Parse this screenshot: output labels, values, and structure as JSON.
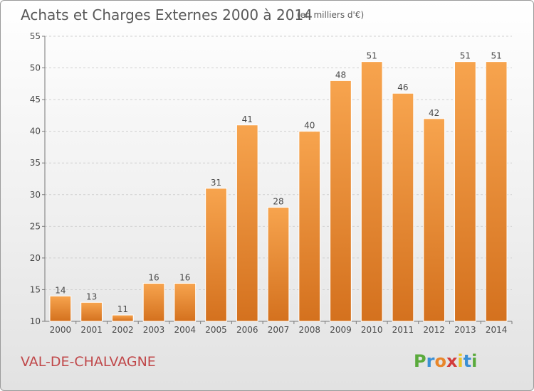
{
  "chart_data": {
    "type": "bar",
    "title": "Achats et Charges Externes 2000 à 2014",
    "subtitle": "(en milliers d'€)",
    "categories": [
      "2000",
      "2001",
      "2002",
      "2003",
      "2004",
      "2005",
      "2006",
      "2007",
      "2008",
      "2009",
      "2010",
      "2011",
      "2012",
      "2013",
      "2014"
    ],
    "values": [
      14,
      13,
      11,
      16,
      16,
      31,
      41,
      28,
      40,
      48,
      51,
      46,
      42,
      51,
      51
    ],
    "ylim": [
      10,
      55
    ],
    "yticks": [
      10,
      15,
      20,
      25,
      30,
      35,
      40,
      45,
      50,
      55
    ],
    "grid": true,
    "bar_color_top": "#f7a44e",
    "bar_color_bottom": "#d4711e"
  },
  "footer": {
    "commune": "VAL-DE-CHALVAGNE",
    "logo_letters": [
      "P",
      "r",
      "o",
      "x",
      "i",
      "t",
      "i"
    ],
    "logo_colors": [
      "#5aaa3c",
      "#3b8fd4",
      "#e8862a",
      "#d23c3c",
      "#e8c52a",
      "#3b8fd4",
      "#5aaa3c"
    ]
  }
}
